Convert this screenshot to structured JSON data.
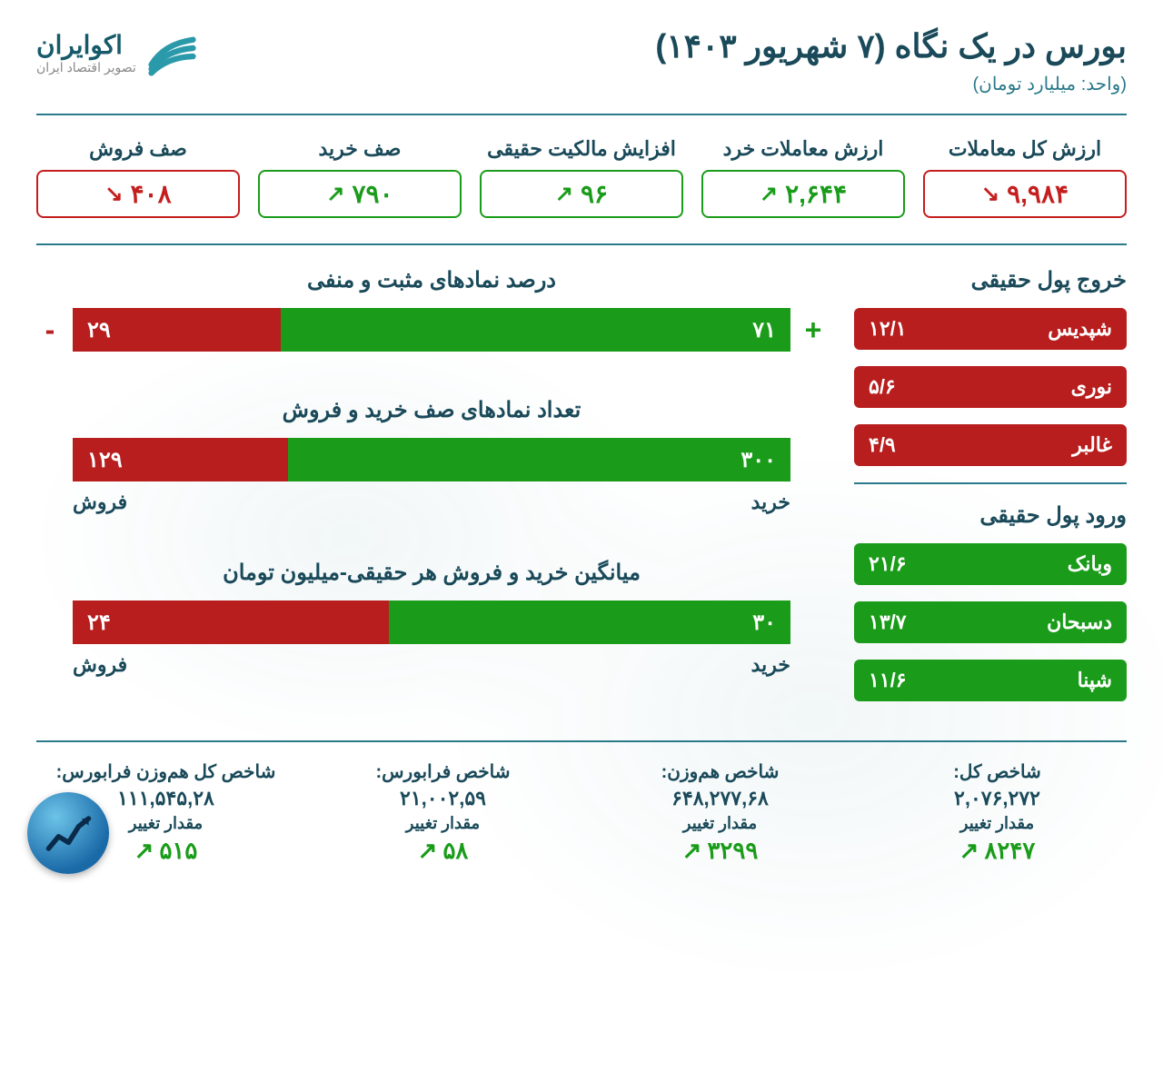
{
  "header": {
    "title": "بورس در یک نگاه (۷ شهریور ۱۴۰۳)",
    "subtitle": "(واحد: میلیارد تومان)",
    "logo_name": "اکوایران",
    "logo_tag": "تصویر اقتصاد ایران"
  },
  "colors": {
    "red": "#b81e1e",
    "green": "#1a9c1a",
    "teal": "#1a4a5a",
    "teal_light": "#2a7a8a"
  },
  "stats": [
    {
      "label": "ارزش کل معاملات",
      "value": "۹,۹۸۴",
      "dir": "down",
      "color": "red"
    },
    {
      "label": "ارزش معاملات خرد",
      "value": "۲,۶۴۴",
      "dir": "up",
      "color": "green"
    },
    {
      "label": "افزایش مالکیت حقیقی",
      "value": "۹۶",
      "dir": "up",
      "color": "green"
    },
    {
      "label": "صف خرید",
      "value": "۷۹۰",
      "dir": "up",
      "color": "green"
    },
    {
      "label": "صف فروش",
      "value": "۴۰۸",
      "dir": "down",
      "color": "red"
    }
  ],
  "outflow": {
    "title": "خروج پول حقیقی",
    "items": [
      {
        "name": "شپدیس",
        "value": "۱۲/۱"
      },
      {
        "name": "نوری",
        "value": "۵/۶"
      },
      {
        "name": "غالبر",
        "value": "۴/۹"
      }
    ]
  },
  "inflow": {
    "title": "ورود پول حقیقی",
    "items": [
      {
        "name": "وبانک",
        "value": "۲۱/۶"
      },
      {
        "name": "دسبحان",
        "value": "۱۳/۷"
      },
      {
        "name": "شپنا",
        "value": "۱۱/۶"
      }
    ]
  },
  "charts": [
    {
      "title": "درصد نمادهای مثبت و منفی",
      "pos_value": "۷۱",
      "pos_pct": 71,
      "neg_value": "۲۹",
      "neg_pct": 29,
      "show_signs": true,
      "show_labels": false
    },
    {
      "title": "تعداد نمادهای صف خرید و فروش",
      "pos_value": "۳۰۰",
      "pos_pct": 70,
      "neg_value": "۱۲۹",
      "neg_pct": 30,
      "pos_label": "خرید",
      "neg_label": "فروش",
      "show_signs": false,
      "show_labels": true
    },
    {
      "title": "میانگین خرید و فروش هر حقیقی-میلیون تومان",
      "pos_value": "۳۰",
      "pos_pct": 56,
      "neg_value": "۲۴",
      "neg_pct": 44,
      "pos_label": "خرید",
      "neg_label": "فروش",
      "show_signs": false,
      "show_labels": true
    }
  ],
  "indices": [
    {
      "label": "شاخص کل:",
      "value": "۲,۰۷۶,۲۷۲",
      "sub": "مقدار تغییر",
      "change": "۸۲۴۷"
    },
    {
      "label": "شاخص هم‌وزن:",
      "value": "۶۴۸,۲۷۷,۶۸",
      "sub": "مقدار تغییر",
      "change": "۳۲۹۹"
    },
    {
      "label": "شاخص فرابورس:",
      "value": "۲۱,۰۰۲,۵۹",
      "sub": "مقدار تغییر",
      "change": "۵۸"
    },
    {
      "label": "شاخص کل هم‌وزن فرابورس:",
      "value": "۱۱۱,۵۴۵,۲۸",
      "sub": "مقدار تغییر",
      "change": "۵۱۵"
    }
  ]
}
